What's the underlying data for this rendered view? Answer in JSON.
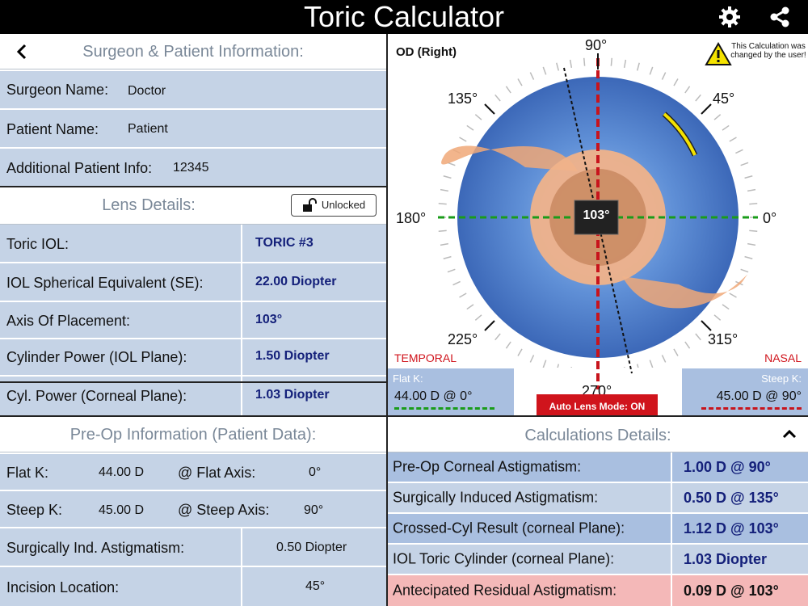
{
  "app": {
    "title": "Toric Calculator"
  },
  "patient_info": {
    "header": "Surgeon & Patient Information:",
    "surgeon_label": "Surgeon Name:",
    "surgeon_value": "Doctor",
    "patient_label": "Patient Name:",
    "patient_value": "Patient",
    "additional_label": "Additional Patient Info:",
    "additional_value": "12345"
  },
  "lens_details": {
    "header": "Lens Details:",
    "lock_label": "Unlocked",
    "rows": [
      {
        "label": "Toric IOL:",
        "value": "TORIC #3"
      },
      {
        "label": "IOL Spherical Equivalent (SE):",
        "value": "22.00 Diopter"
      },
      {
        "label": "Axis Of Placement:",
        "value": "103°"
      },
      {
        "label": "Cylinder Power (IOL Plane):",
        "value": "1.50 Diopter"
      },
      {
        "label": "Cyl. Power (Corneal Plane):",
        "value": "1.03 Diopter"
      }
    ]
  },
  "preop": {
    "header": "Pre-Op Information (Patient Data):",
    "flatk_label": "Flat K:",
    "flatk_value": "44.00 D",
    "flataxis_label": "@ Flat Axis:",
    "flataxis_value": "0°",
    "steepk_label": "Steep K:",
    "steepk_value": "45.00 D",
    "steepaxis_label": "@ Steep Axis:",
    "steepaxis_value": "90°",
    "sia_label": "Surgically Ind. Astigmatism:",
    "sia_value": "0.50 Diopter",
    "incision_label": "Incision Location:",
    "incision_value": "45°"
  },
  "diagram": {
    "eye_label": "OD (Right)",
    "warning_text": "This Calculation was changed by the user!",
    "angles": {
      "a90": "90°",
      "a45": "45°",
      "a135": "135°",
      "a180": "180°",
      "a0": "0°",
      "a225": "225°",
      "a315": "315°",
      "a270": "270°"
    },
    "center_value": "103°",
    "temporal": "TEMPORAL",
    "nasal": "NASAL",
    "flatk_label": "Flat K:",
    "flatk_value": "44.00 D @ 0°",
    "steepk_label": "Steep K:",
    "steepk_value": "45.00 D @ 90°",
    "auto_lens": "Auto Lens Mode: ON"
  },
  "calc": {
    "header": "Calculations Details:",
    "rows": [
      {
        "label": "Pre-Op Corneal Astigmatism:",
        "value": "1.00 D @ 90°"
      },
      {
        "label": "Surgically Induced Astigmatism:",
        "value": "0.50 D @ 135°"
      },
      {
        "label": "Crossed-Cyl Result (corneal Plane):",
        "value": "1.12 D @ 103°"
      },
      {
        "label": "IOL Toric Cylinder (corneal Plane):",
        "value": "1.03 Diopter"
      },
      {
        "label": "Antecipated Residual Astigmatism:",
        "value": "0.09 D @ 103°"
      }
    ]
  },
  "colors": {
    "row_bg": "#c5d3e6",
    "value_blue": "#14207a",
    "residual_bg": "#f4b8b8",
    "alert_red": "#d0141c"
  },
  "icons": {
    "settings": "gear-icon",
    "share": "share-icon",
    "back": "chevron-left-icon",
    "lock": "unlock-icon",
    "warning": "warning-icon",
    "collapse": "chevron-up-icon"
  }
}
